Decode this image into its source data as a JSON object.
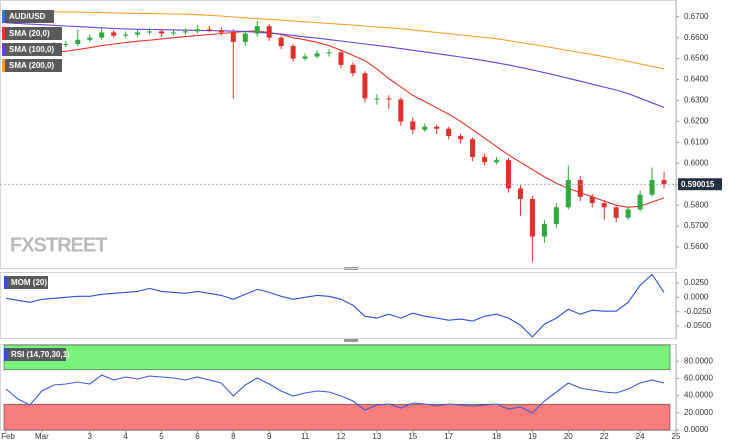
{
  "chart_data": [
    {
      "type": "candlestick",
      "title": "AUD/USD",
      "watermark": "FXSTREET",
      "up_color": "#2eaa3c",
      "down_color": "#e0302a",
      "x": [
        0,
        1,
        2,
        3,
        4,
        5,
        6,
        7,
        8,
        9,
        10,
        11,
        12,
        13,
        14,
        15,
        16,
        17,
        18,
        19,
        20,
        21,
        22,
        23,
        24,
        25,
        26,
        27,
        28,
        29,
        30,
        31,
        32,
        33,
        34,
        35,
        36,
        37,
        38,
        39,
        40,
        41,
        42,
        43,
        44,
        45,
        46,
        47,
        48,
        49,
        50,
        51,
        52,
        53,
        54,
        55
      ],
      "open": [
        0.6545,
        0.656,
        0.6545,
        0.656,
        0.6555,
        0.6565,
        0.657,
        0.659,
        0.66,
        0.6625,
        0.661,
        0.6615,
        0.6625,
        0.663,
        0.662,
        0.6625,
        0.663,
        0.664,
        0.6635,
        0.6625,
        0.658,
        0.662,
        0.6655,
        0.66,
        0.656,
        0.65,
        0.651,
        0.6525,
        0.653,
        0.647,
        0.643,
        0.631,
        0.631,
        0.6305,
        0.62,
        0.616,
        0.6175,
        0.6165,
        0.613,
        0.6115,
        0.603,
        0.6005,
        0.6015,
        0.588,
        0.583,
        0.565,
        0.571,
        0.579,
        0.592,
        0.584,
        0.581,
        0.579,
        0.574,
        0.578,
        0.585,
        0.592
      ],
      "high": [
        0.657,
        0.6572,
        0.6575,
        0.657,
        0.658,
        0.6585,
        0.664,
        0.6615,
        0.6645,
        0.6635,
        0.663,
        0.664,
        0.6645,
        0.664,
        0.664,
        0.6645,
        0.666,
        0.6655,
        0.665,
        0.664,
        0.6635,
        0.668,
        0.6665,
        0.661,
        0.657,
        0.6525,
        0.654,
        0.6545,
        0.654,
        0.648,
        0.644,
        0.633,
        0.6325,
        0.6315,
        0.622,
        0.619,
        0.6185,
        0.6175,
        0.614,
        0.6125,
        0.6045,
        0.603,
        0.6025,
        0.5895,
        0.5845,
        0.573,
        0.581,
        0.599,
        0.594,
        0.5855,
        0.5825,
        0.58,
        0.5795,
        0.587,
        0.598,
        0.596
      ],
      "low": [
        0.6535,
        0.653,
        0.6538,
        0.654,
        0.6545,
        0.6555,
        0.656,
        0.658,
        0.659,
        0.66,
        0.66,
        0.6605,
        0.6615,
        0.6605,
        0.661,
        0.6615,
        0.662,
        0.6625,
        0.661,
        0.631,
        0.656,
        0.6605,
        0.6585,
        0.6545,
        0.6485,
        0.649,
        0.65,
        0.651,
        0.6455,
        0.6415,
        0.629,
        0.628,
        0.626,
        0.618,
        0.614,
        0.615,
        0.614,
        0.6115,
        0.6095,
        0.601,
        0.599,
        0.5995,
        0.586,
        0.575,
        0.553,
        0.562,
        0.569,
        0.578,
        0.582,
        0.579,
        0.573,
        0.572,
        0.573,
        0.577,
        0.584,
        0.588
      ],
      "close": [
        0.656,
        0.6545,
        0.656,
        0.6555,
        0.6565,
        0.657,
        0.659,
        0.66,
        0.6625,
        0.661,
        0.6615,
        0.6625,
        0.663,
        0.662,
        0.6625,
        0.663,
        0.664,
        0.6635,
        0.6625,
        0.658,
        0.662,
        0.6655,
        0.66,
        0.656,
        0.65,
        0.651,
        0.6525,
        0.653,
        0.647,
        0.643,
        0.631,
        0.631,
        0.6305,
        0.62,
        0.616,
        0.6175,
        0.6165,
        0.613,
        0.6115,
        0.603,
        0.6005,
        0.6015,
        0.588,
        0.583,
        0.565,
        0.571,
        0.579,
        0.592,
        0.584,
        0.581,
        0.579,
        0.574,
        0.578,
        0.585,
        0.592,
        0.59
      ],
      "series": [
        {
          "name": "SMA (20,0)",
          "color": "#e8332a",
          "values": [
            0.653,
            0.653,
            0.653,
            0.653,
            0.6531,
            0.6535,
            0.6543,
            0.6552,
            0.6562,
            0.657,
            0.6577,
            0.6583,
            0.6588,
            0.6594,
            0.66,
            0.6605,
            0.661,
            0.6615,
            0.662,
            0.6625,
            0.663,
            0.6632,
            0.6625,
            0.6615,
            0.66,
            0.659,
            0.6578,
            0.6562,
            0.654,
            0.6515,
            0.649,
            0.645,
            0.6405,
            0.6365,
            0.6325,
            0.6295,
            0.6265,
            0.6235,
            0.62,
            0.616,
            0.612,
            0.608,
            0.604,
            0.6005,
            0.597,
            0.5935,
            0.5905,
            0.588,
            0.586,
            0.584,
            0.582,
            0.58,
            0.579,
            0.5795,
            0.5815,
            0.5835
          ]
        },
        {
          "name": "SMA (100,0)",
          "color": "#6a3fd6",
          "values": [
            0.6671,
            0.6668,
            0.6665,
            0.6662,
            0.6659,
            0.6656,
            0.6653,
            0.665,
            0.6647,
            0.6644,
            0.6642,
            0.664,
            0.6639,
            0.6638,
            0.6637,
            0.6636,
            0.6635,
            0.6634,
            0.6633,
            0.6631,
            0.6629,
            0.6626,
            0.6622,
            0.6617,
            0.6611,
            0.6604,
            0.6598,
            0.6591,
            0.6584,
            0.6577,
            0.657,
            0.6563,
            0.6556,
            0.6548,
            0.654,
            0.6532,
            0.6524,
            0.6516,
            0.6508,
            0.6499,
            0.649,
            0.648,
            0.647,
            0.6458,
            0.6446,
            0.6433,
            0.642,
            0.6406,
            0.6392,
            0.6378,
            0.6364,
            0.635,
            0.6333,
            0.6311,
            0.6289,
            0.6267
          ]
        },
        {
          "name": "SMA (200,0)",
          "color": "#f5a030",
          "values": [
            0.6729,
            0.6728,
            0.6727,
            0.6726,
            0.6724,
            0.6723,
            0.6722,
            0.6721,
            0.672,
            0.6718,
            0.6717,
            0.6716,
            0.6715,
            0.6714,
            0.6713,
            0.6712,
            0.671,
            0.6707,
            0.6703,
            0.6699,
            0.6695,
            0.6691,
            0.6688,
            0.6684,
            0.668,
            0.6676,
            0.6672,
            0.6668,
            0.6664,
            0.666,
            0.6656,
            0.6651,
            0.6647,
            0.6643,
            0.6637,
            0.6631,
            0.6625,
            0.6619,
            0.6613,
            0.6607,
            0.6601,
            0.6595,
            0.6586,
            0.6577,
            0.6568,
            0.6559,
            0.6549,
            0.6539,
            0.6529,
            0.652,
            0.6509,
            0.6498,
            0.6487,
            0.6475,
            0.6463,
            0.6452
          ]
        }
      ],
      "last_price": 0.590015,
      "xlim": [
        -0.5,
        56
      ],
      "xticks": [
        {
          "value": 0,
          "label": "Feb"
        },
        {
          "value": 3,
          "label": "Mar"
        },
        {
          "value": 7,
          "label": "3"
        },
        {
          "value": 10,
          "label": "4"
        },
        {
          "value": 13,
          "label": "5"
        },
        {
          "value": 16,
          "label": "6"
        },
        {
          "value": 19,
          "label": "8"
        },
        {
          "value": 22,
          "label": "9"
        },
        {
          "value": 25,
          "label": "11"
        },
        {
          "value": 28,
          "label": "12"
        },
        {
          "value": 31,
          "label": "13"
        },
        {
          "value": 34,
          "label": "15"
        },
        {
          "value": 37,
          "label": "17"
        },
        {
          "value": 41,
          "label": "18"
        },
        {
          "value": 44,
          "label": "19"
        },
        {
          "value": 47,
          "label": "20"
        },
        {
          "value": 50,
          "label": "22"
        },
        {
          "value": 53,
          "label": "24"
        },
        {
          "value": 56,
          "label": "25"
        }
      ],
      "ylim": [
        0.55,
        0.678
      ],
      "yticks": [
        {
          "value": 0.56,
          "label": "0.5600"
        },
        {
          "value": 0.57,
          "label": "0.5700"
        },
        {
          "value": 0.58,
          "label": "0.5800"
        },
        {
          "value": 0.59,
          "label": "0.5900"
        },
        {
          "value": 0.6,
          "label": "0.6000"
        },
        {
          "value": 0.61,
          "label": "0.6100"
        },
        {
          "value": 0.62,
          "label": "0.6200"
        },
        {
          "value": 0.63,
          "label": "0.6300"
        },
        {
          "value": 0.64,
          "label": "0.6400"
        },
        {
          "value": 0.65,
          "label": "0.6500"
        },
        {
          "value": 0.66,
          "label": "0.6600"
        },
        {
          "value": 0.67,
          "label": "0.6700"
        }
      ]
    },
    {
      "type": "line",
      "title": "MOM (20)",
      "series": [
        {
          "color": "#2f4fd8",
          "values": [
            -0.0017,
            -0.0052,
            -0.0086,
            -0.0034,
            -0.0017,
            0,
            0.0017,
            0.0017,
            0.0052,
            0.0069,
            0.0086,
            0.0103,
            0.0155,
            0.0103,
            0.0086,
            0.0069,
            0.0103,
            0.0069,
            0.0034,
            -0.0034,
            0.0052,
            0.0138,
            0.0086,
            0.0017,
            -0.0034,
            0,
            0.0034,
            0.0017,
            -0.0034,
            -0.0138,
            -0.0328,
            -0.0362,
            -0.0293,
            -0.0362,
            -0.0276,
            -0.0328,
            -0.0362,
            -0.0397,
            -0.0379,
            -0.0414,
            -0.0328,
            -0.0293,
            -0.0362,
            -0.0483,
            -0.069,
            -0.0466,
            -0.0362,
            -0.0207,
            -0.0293,
            -0.0224,
            -0.0241,
            -0.0241,
            -0.0086,
            0.0207,
            0.0397,
            0.0086
          ]
        }
      ],
      "ylim": [
        -0.0707,
        0.044
      ],
      "yticks": [
        {
          "value": 0.025,
          "label": "0.0250"
        },
        {
          "value": 0,
          "label": "0.0000"
        },
        {
          "value": -0.025,
          "label": "-0.0250"
        },
        {
          "value": -0.05,
          "label": "-0.0500"
        }
      ]
    },
    {
      "type": "line",
      "title": "RSI (14,70,30,1)",
      "bands": {
        "upper": 70,
        "lower": 30,
        "upper_color": "#79f37a",
        "lower_color": "#f77c7c"
      },
      "series": [
        {
          "color": "#3b5bdb",
          "values": [
            47.7,
            36.0,
            29.1,
            45.3,
            52.3,
            53.5,
            55.8,
            53.5,
            64.0,
            58.1,
            61.6,
            59.3,
            62.8,
            61.6,
            60.5,
            58.1,
            61.6,
            58.1,
            54.7,
            39.5,
            52.3,
            60.5,
            53.5,
            45.3,
            39.5,
            43.0,
            45.3,
            44.2,
            39.5,
            33.7,
            23.3,
            29.1,
            30.2,
            25.6,
            31.4,
            30.2,
            27.9,
            30.2,
            29.1,
            27.9,
            29.1,
            30.2,
            24.4,
            26.7,
            19.8,
            33.7,
            44.2,
            54.7,
            48.8,
            46.5,
            44.2,
            43.0,
            47.7,
            54.7,
            58.1,
            54.7
          ]
        }
      ],
      "ylim": [
        0,
        100
      ],
      "yticks": [
        {
          "value": 80,
          "label": "80.0000"
        },
        {
          "value": 60,
          "label": "60.0000"
        },
        {
          "value": 40,
          "label": "40.0000"
        },
        {
          "value": 20,
          "label": "20.0000"
        },
        {
          "value": 0,
          "label": "0.0000"
        }
      ]
    }
  ]
}
